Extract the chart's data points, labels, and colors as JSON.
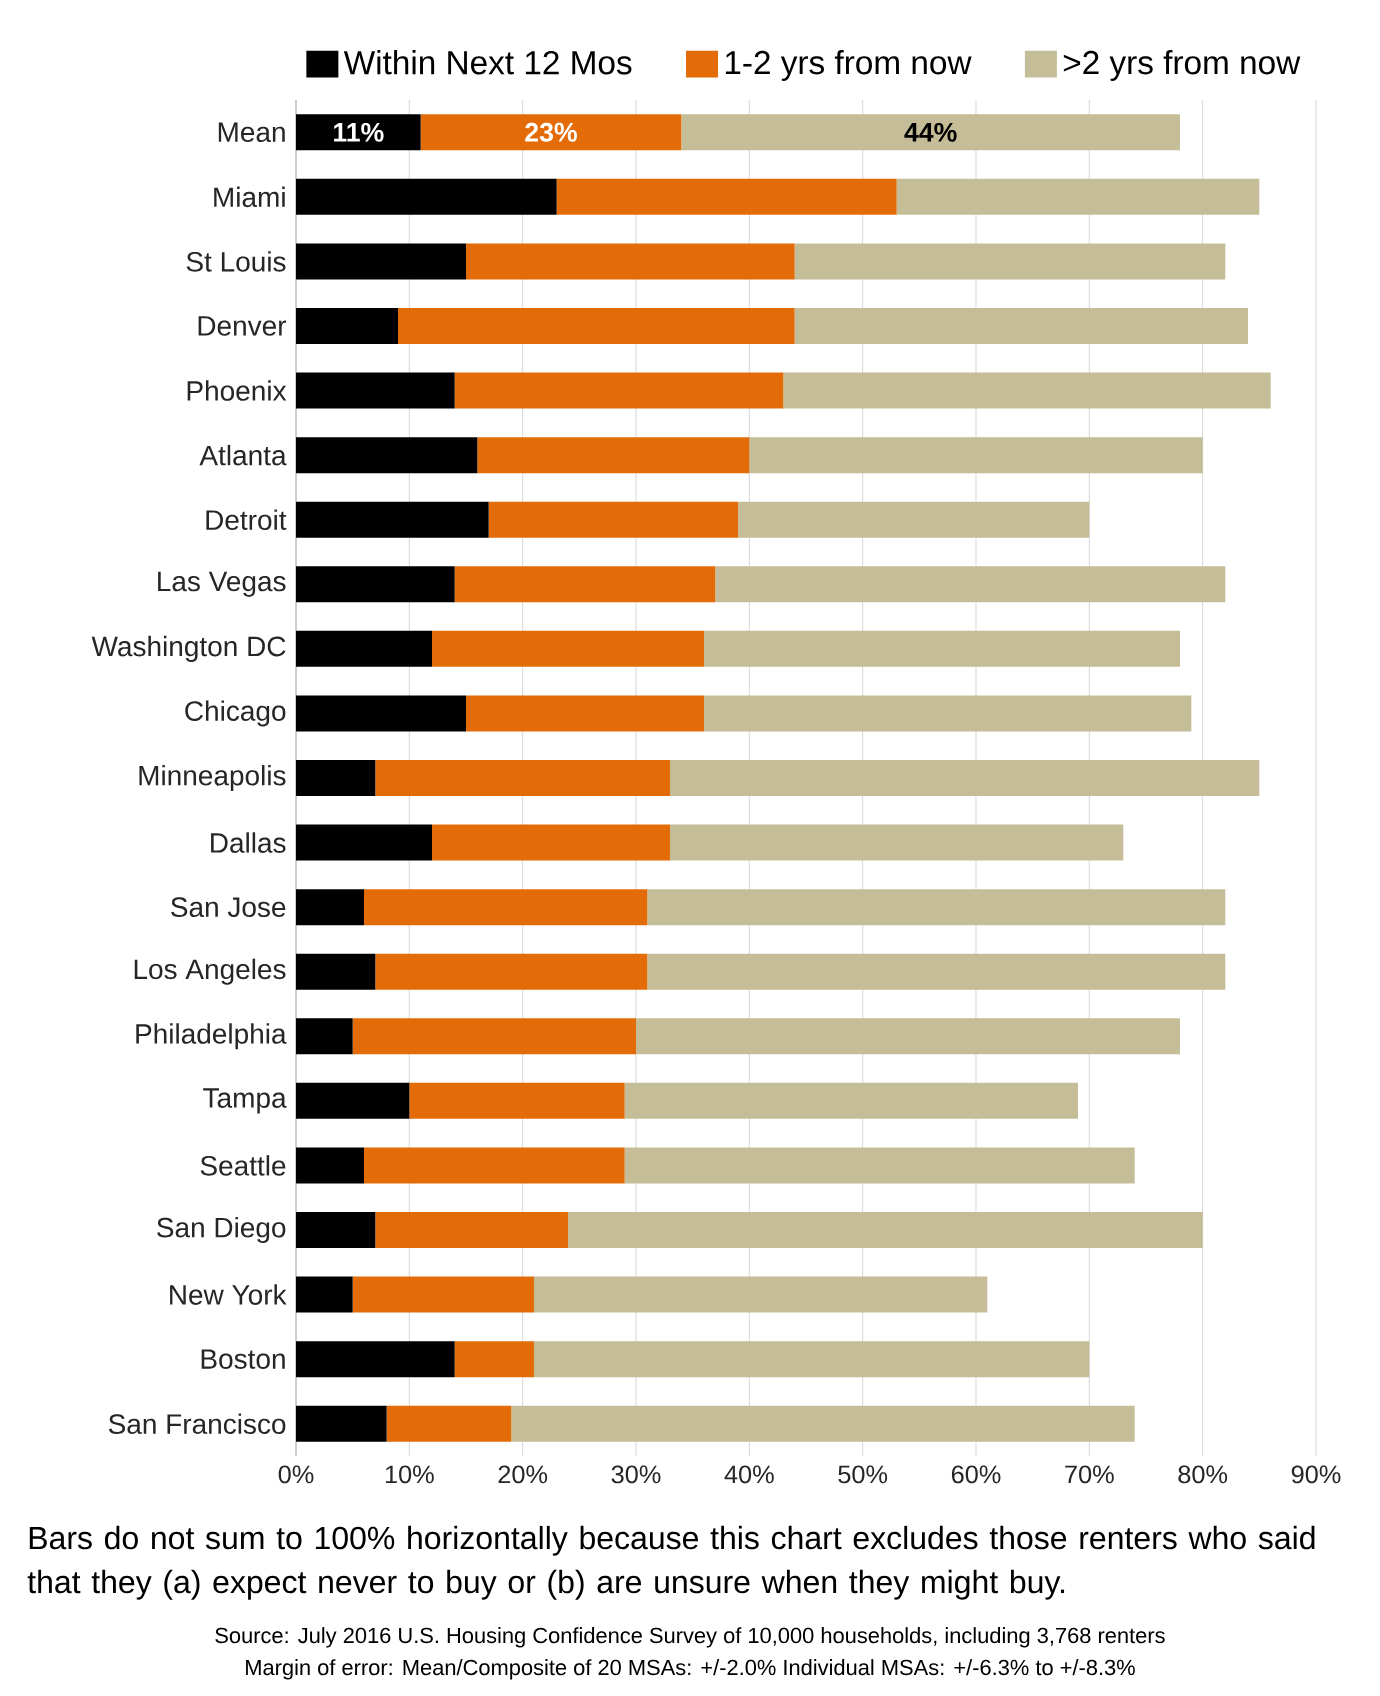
{
  "chart_data": {
    "type": "bar",
    "orientation": "horizontal",
    "stacked": true,
    "categories": [
      "Mean",
      "Miami",
      "St Louis",
      "Denver",
      "Phoenix",
      "Atlanta",
      "Detroit",
      "Las Vegas",
      "Washington DC",
      "Chicago",
      "Minneapolis",
      "Dallas",
      "San Jose",
      "Los Angeles",
      "Philadelphia",
      "Tampa",
      "Seattle",
      "San Diego",
      "New York",
      "Boston",
      "San Francisco"
    ],
    "series": [
      {
        "name": "Within Next 12 Mos",
        "color": "#000000",
        "values": [
          11,
          23,
          15,
          9,
          14,
          16,
          17,
          14,
          12,
          15,
          7,
          12,
          6,
          7,
          5,
          10,
          6,
          7,
          5,
          14,
          8
        ],
        "value_labels": [
          "11%",
          null,
          null,
          null,
          null,
          null,
          null,
          null,
          null,
          null,
          null,
          null,
          null,
          null,
          null,
          null,
          null,
          null,
          null,
          null,
          null
        ]
      },
      {
        "name": "1-2 yrs from now",
        "color": "#e36c09",
        "values": [
          23,
          30,
          29,
          35,
          29,
          24,
          22,
          23,
          24,
          21,
          26,
          21,
          25,
          24,
          25,
          19,
          23,
          17,
          16,
          7,
          11
        ],
        "value_labels": [
          "23%",
          null,
          null,
          null,
          null,
          null,
          null,
          null,
          null,
          null,
          null,
          null,
          null,
          null,
          null,
          null,
          null,
          null,
          null,
          null,
          null
        ]
      },
      {
        "name": ">2 yrs from now",
        "color": "#c4bd97",
        "values": [
          44,
          32,
          38,
          40,
          43,
          40,
          31,
          45,
          42,
          43,
          52,
          40,
          51,
          51,
          48,
          40,
          45,
          56,
          40,
          49,
          55
        ],
        "value_labels": [
          "44%",
          null,
          null,
          null,
          null,
          null,
          null,
          null,
          null,
          null,
          null,
          null,
          null,
          null,
          null,
          null,
          null,
          null,
          null,
          null,
          null
        ]
      }
    ],
    "xlim": [
      0,
      90
    ],
    "xticks": [
      {
        "value": 0,
        "label": "0%"
      },
      {
        "value": 10,
        "label": "10%"
      },
      {
        "value": 20,
        "label": "20%"
      },
      {
        "value": 30,
        "label": "30%"
      },
      {
        "value": 40,
        "label": "40%"
      },
      {
        "value": 50,
        "label": "50%"
      },
      {
        "value": 60,
        "label": "60%"
      },
      {
        "value": 70,
        "label": "70%"
      },
      {
        "value": 80,
        "label": "80%"
      },
      {
        "value": 90,
        "label": "90%"
      }
    ],
    "grid": "x",
    "legend": "top",
    "annotations": [
      "Bars do not sum to 100% horizontally because this chart excludes those renters who said that  they (a) expect never to buy or (b) are unsure when they might buy.",
      "Source: July 2016 U.S. Housing Confidence Survey of 10,000 households, including 3,768 renters",
      "Margin of error:   Mean/Composite of 20 MSAs: +/-2.0%   Individual MSAs: +/-6.3% to +/-8.3%"
    ]
  }
}
